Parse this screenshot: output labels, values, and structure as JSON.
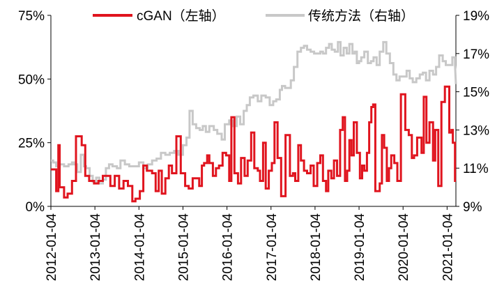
{
  "chart_data": {
    "type": "line",
    "title": "",
    "xlabel": "",
    "ylabel_left": "",
    "ylabel_right": "",
    "legend_position": "top",
    "grid": false,
    "x_tick_labels": [
      "2012-01-04",
      "2013-01-04",
      "2014-01-04",
      "2015-01-04",
      "2016-01-04",
      "2017-01-04",
      "2018-01-04",
      "2019-01-04",
      "2020-01-04",
      "2021-01-04"
    ],
    "x_range": [
      2012.0,
      2021.2
    ],
    "left_axis": {
      "ticks": [
        "0%",
        "25%",
        "50%",
        "75%"
      ],
      "values": [
        0,
        25,
        50,
        75
      ],
      "ylim": [
        0,
        75
      ]
    },
    "right_axis": {
      "ticks": [
        "9%",
        "11%",
        "13%",
        "15%",
        "17%",
        "19%"
      ],
      "values": [
        9,
        11,
        13,
        15,
        17,
        19
      ],
      "ylim": [
        9,
        19
      ]
    },
    "series": [
      {
        "name": "cGAN（左轴）",
        "axis": "left",
        "color": "#e0141e",
        "step": true,
        "x": [
          2012.0,
          2012.12,
          2012.17,
          2012.2,
          2012.3,
          2012.38,
          2012.48,
          2012.57,
          2012.7,
          2012.78,
          2012.87,
          2012.98,
          2013.08,
          2013.18,
          2013.28,
          2013.35,
          2013.45,
          2013.55,
          2013.65,
          2013.75,
          2013.85,
          2013.92,
          2014.02,
          2014.1,
          2014.18,
          2014.3,
          2014.38,
          2014.45,
          2014.52,
          2014.6,
          2014.68,
          2014.75,
          2014.85,
          2014.95,
          2015.05,
          2015.13,
          2015.22,
          2015.3,
          2015.37,
          2015.43,
          2015.48,
          2015.55,
          2015.6,
          2015.68,
          2015.75,
          2015.82,
          2015.9,
          2015.98,
          2016.05,
          2016.1,
          2016.17,
          2016.25,
          2016.32,
          2016.4,
          2016.47,
          2016.55,
          2016.62,
          2016.7,
          2016.75,
          2016.82,
          2016.88,
          2016.95,
          2017.02,
          2017.08,
          2017.15,
          2017.23,
          2017.33,
          2017.43,
          2017.5,
          2017.55,
          2017.62,
          2017.68,
          2017.75,
          2017.82,
          2017.9,
          2017.97,
          2018.05,
          2018.12,
          2018.18,
          2018.25,
          2018.3,
          2018.37,
          2018.43,
          2018.5,
          2018.57,
          2018.63,
          2018.68,
          2018.73,
          2018.78,
          2018.83,
          2018.88,
          2018.95,
          2019.02,
          2019.07,
          2019.12,
          2019.18,
          2019.23,
          2019.28,
          2019.32,
          2019.37,
          2019.42,
          2019.47,
          2019.52,
          2019.57,
          2019.63,
          2019.68,
          2019.73,
          2019.8,
          2019.87,
          2019.95,
          2020.05,
          2020.13,
          2020.2,
          2020.25,
          2020.32,
          2020.42,
          2020.47,
          2020.53,
          2020.6,
          2020.68,
          2020.73,
          2020.8,
          2020.87,
          2020.95,
          2021.05,
          2021.1,
          2021.13,
          2021.18
        ],
        "y": [
          14.5,
          6,
          24,
          7.5,
          3.5,
          5,
          10,
          27.5,
          24,
          12,
          10,
          9,
          10,
          12,
          12,
          8,
          12,
          7,
          10,
          8,
          2,
          3,
          6,
          16,
          14,
          13,
          6,
          14,
          5,
          11,
          16,
          13,
          27.5,
          13,
          8,
          7,
          11,
          11,
          8,
          16,
          17,
          20,
          17,
          12,
          15,
          16,
          21,
          20,
          10,
          35,
          13,
          9,
          19,
          12,
          18,
          29,
          15,
          14,
          10,
          25,
          7,
          14,
          17,
          33,
          19,
          4,
          28,
          12,
          13,
          10,
          24,
          18,
          14,
          13,
          16,
          8,
          17,
          20,
          10,
          6,
          14,
          11,
          18,
          12,
          30,
          35,
          10,
          14,
          26,
          20,
          33,
          21,
          11,
          16,
          14,
          21,
          33,
          39,
          40,
          6,
          6,
          9,
          28,
          23,
          10,
          15,
          20,
          17,
          10,
          44,
          30,
          28,
          19,
          20,
          27,
          21,
          43,
          25,
          33,
          18,
          30,
          8,
          41,
          47,
          29,
          30,
          25,
          10
        ],
        "y_display_note": ""
      },
      {
        "name": "传统方法（右轴）",
        "axis": "right",
        "color": "#c8c8c8",
        "step": true,
        "x": [],
        "y": []
      }
    ],
    "legend": [
      "cGAN（左轴）",
      "传统方法（右轴）"
    ]
  }
}
